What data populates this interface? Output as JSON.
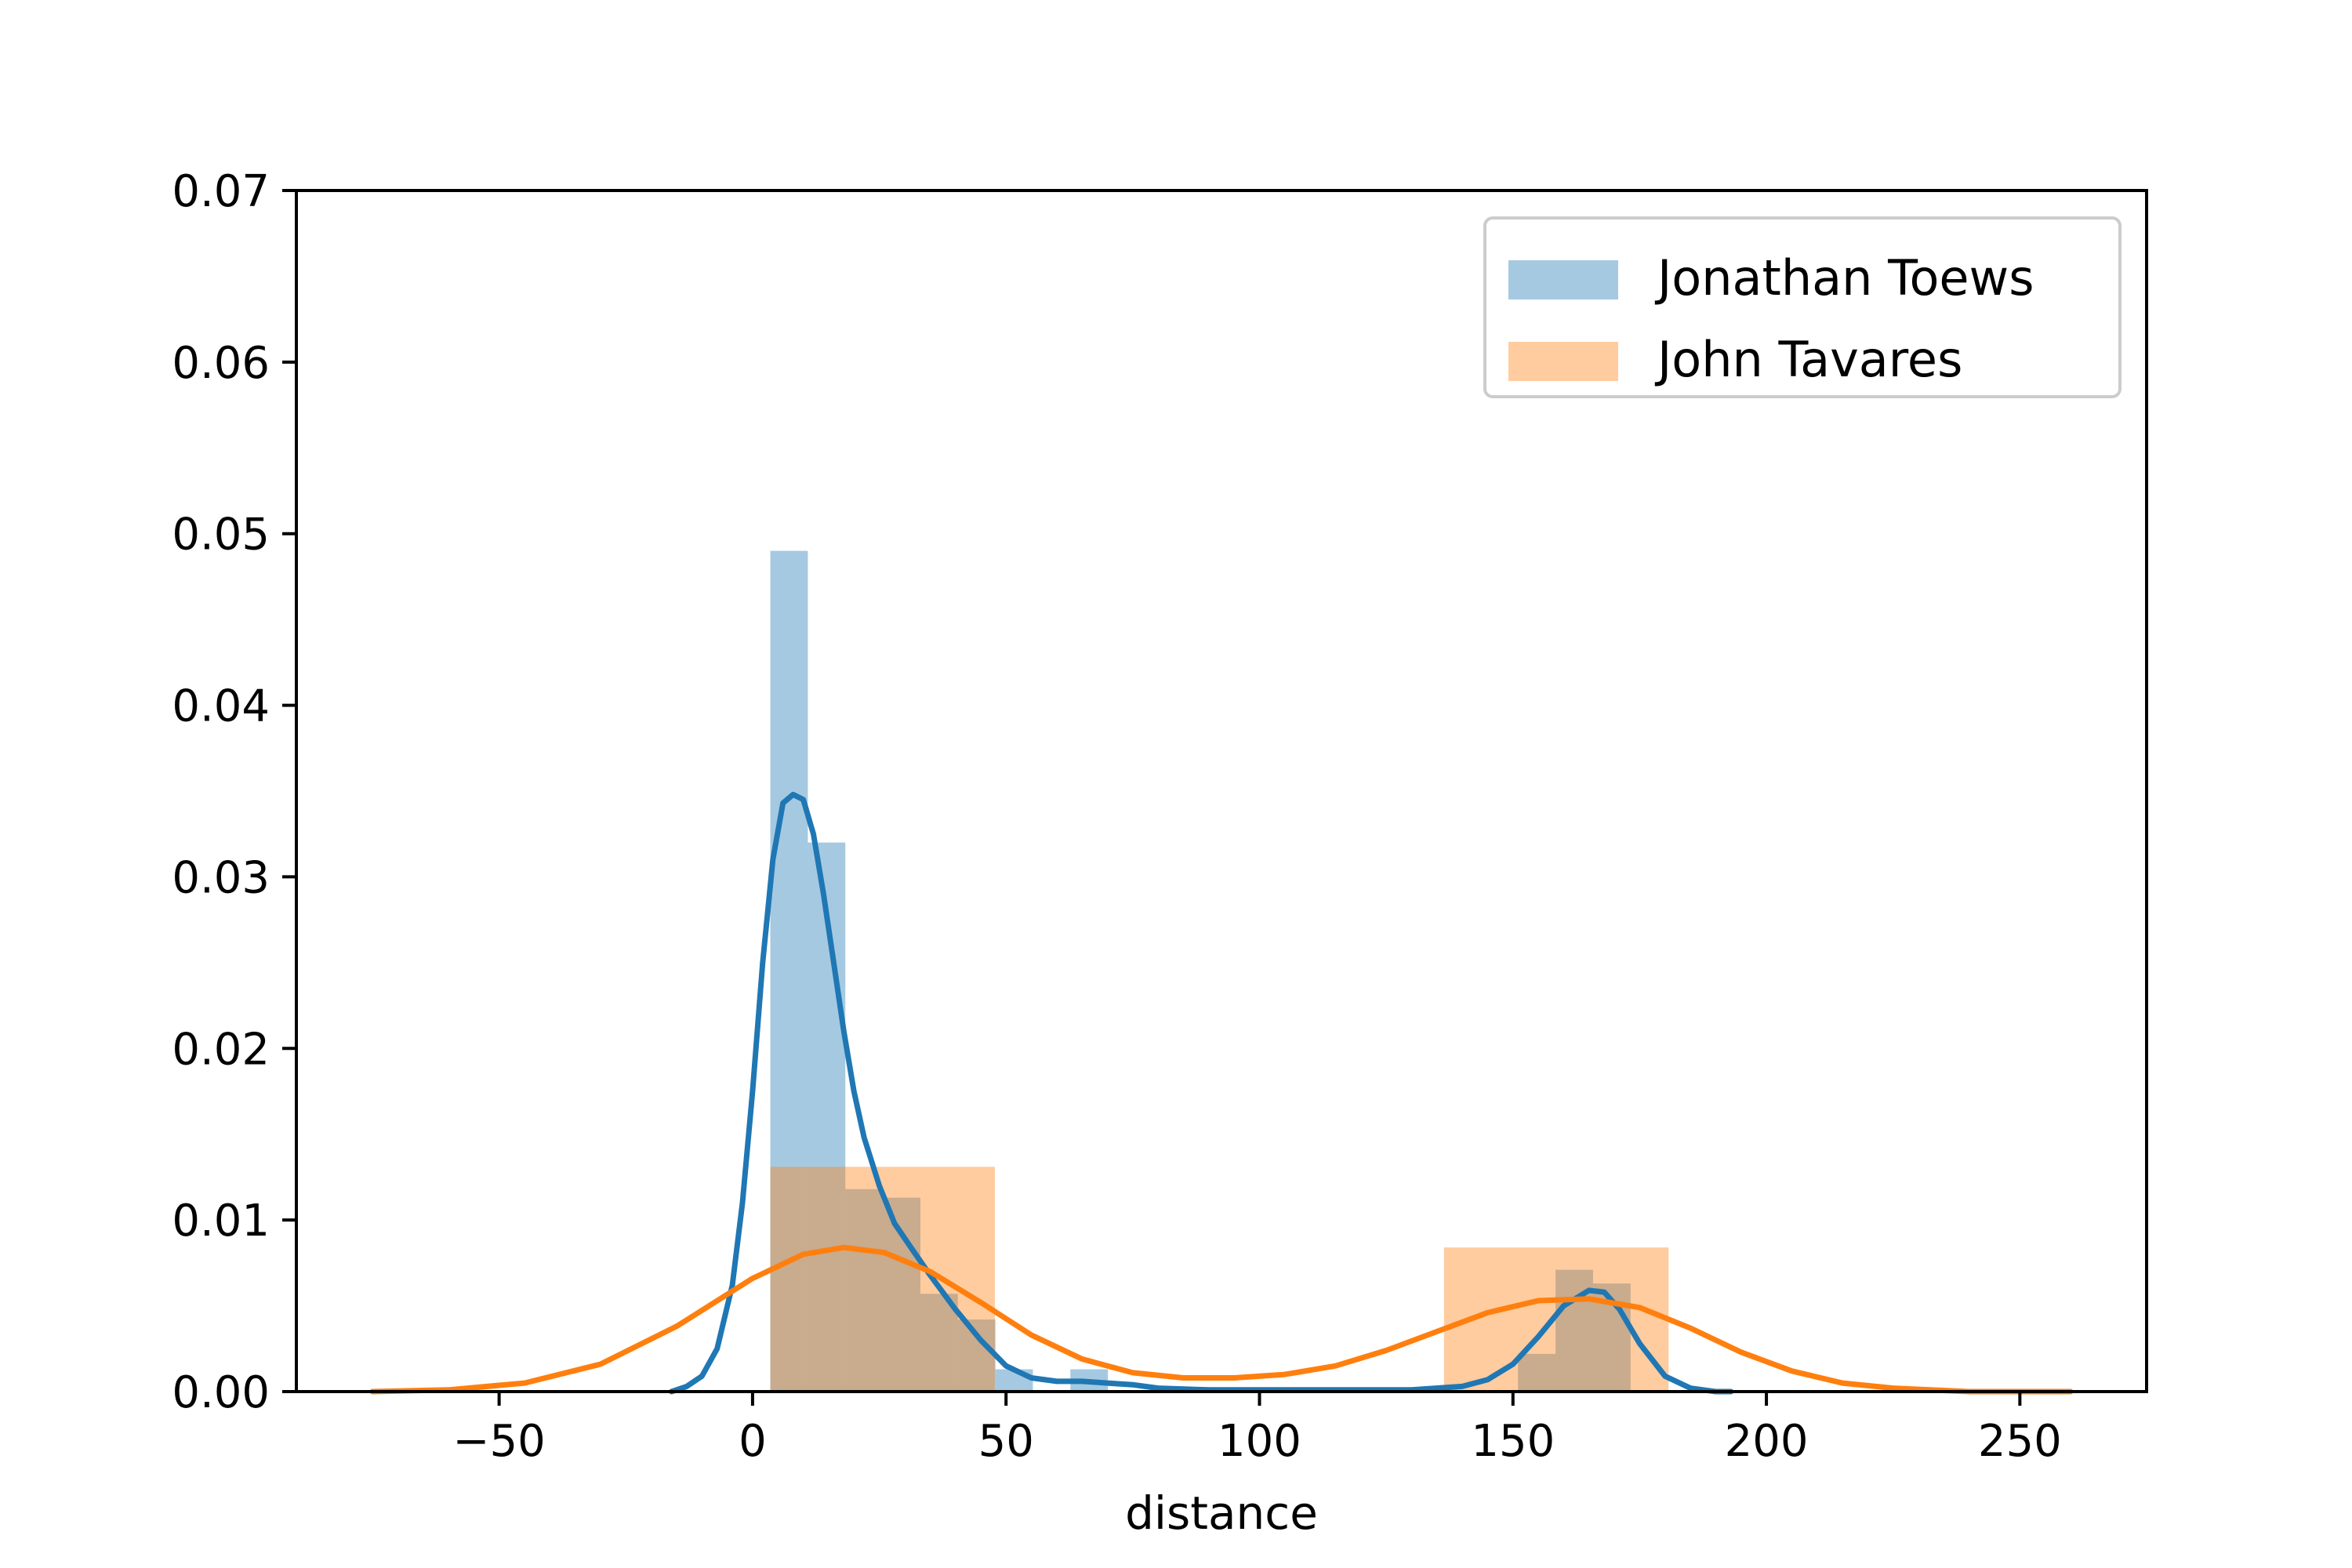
{
  "chart_data": {
    "type": "bar",
    "title": "",
    "xlabel": "distance",
    "ylabel": "",
    "xlim": [
      -90,
      275
    ],
    "ylim": [
      0,
      0.07
    ],
    "x_ticks": [
      -50,
      0,
      50,
      100,
      150,
      200,
      250
    ],
    "x_tick_labels": [
      "−50",
      "0",
      "50",
      "100",
      "150",
      "200",
      "250"
    ],
    "y_ticks": [
      0,
      0.01,
      0.02,
      0.03,
      0.04,
      0.05,
      0.06,
      0.07
    ],
    "y_tick_labels": [
      "0.00",
      "0.01",
      "0.02",
      "0.03",
      "0.04",
      "0.05",
      "0.06",
      "0.07"
    ],
    "grid": false,
    "legend_position": "top-right",
    "series": [
      {
        "name": "Jonathan Toews",
        "color": "#1f77b4",
        "hist": [
          {
            "x0": 3.5,
            "x1": 10.9,
            "height": 0.049
          },
          {
            "x0": 10.9,
            "x1": 18.3,
            "height": 0.032
          },
          {
            "x0": 18.3,
            "x1": 25.7,
            "height": 0.0118
          },
          {
            "x0": 25.7,
            "x1": 33.1,
            "height": 0.0113
          },
          {
            "x0": 33.1,
            "x1": 40.5,
            "height": 0.0057
          },
          {
            "x0": 40.5,
            "x1": 47.9,
            "height": 0.0042
          },
          {
            "x0": 47.9,
            "x1": 55.3,
            "height": 0.0013
          },
          {
            "x0": 55.3,
            "x1": 62.7,
            "height": 0.0
          },
          {
            "x0": 62.7,
            "x1": 70.1,
            "height": 0.0013
          },
          {
            "x0": 70.1,
            "x1": 77.5,
            "height": 0.0
          },
          {
            "x0": 151.0,
            "x1": 158.4,
            "height": 0.0022
          },
          {
            "x0": 158.4,
            "x1": 165.8,
            "height": 0.0071
          },
          {
            "x0": 165.8,
            "x1": 173.2,
            "height": 0.0063
          },
          {
            "x0": 173.2,
            "x1": 175.0,
            "height": 0.0
          }
        ],
        "kde": {
          "x": [
            -16,
            -13,
            -10,
            -7,
            -4,
            -2,
            0,
            2,
            4,
            6,
            8,
            10,
            12,
            14,
            16,
            18,
            20,
            22,
            25,
            28,
            31,
            35,
            40,
            45,
            50,
            55,
            60,
            65,
            70,
            75,
            80,
            90,
            100,
            110,
            120,
            130,
            140,
            145,
            150,
            155,
            160,
            165,
            168,
            171,
            175,
            180,
            185,
            190,
            193
          ],
          "y": [
            0,
            0.0003,
            0.0009,
            0.0025,
            0.0062,
            0.011,
            0.0175,
            0.025,
            0.031,
            0.0343,
            0.0348,
            0.0345,
            0.0325,
            0.029,
            0.025,
            0.021,
            0.0175,
            0.0148,
            0.012,
            0.0098,
            0.0085,
            0.0068,
            0.0048,
            0.003,
            0.0015,
            0.0008,
            0.0006,
            0.0006,
            0.0005,
            0.0004,
            0.0002,
            0.0001,
            0.0001,
            0.0001,
            0.0001,
            0.0001,
            0.0003,
            0.0007,
            0.0016,
            0.0032,
            0.005,
            0.0059,
            0.0058,
            0.0048,
            0.0028,
            0.0009,
            0.0002,
            0.0,
            0.0
          ]
        }
      },
      {
        "name": "John Tavares",
        "color": "#ff7f0e",
        "hist": [
          {
            "x0": 3.5,
            "x1": 47.8,
            "height": 0.0131
          },
          {
            "x0": 47.8,
            "x1": 92.1,
            "height": 0.0
          },
          {
            "x0": 92.1,
            "x1": 136.4,
            "height": 0.0
          },
          {
            "x0": 136.4,
            "x1": 180.7,
            "height": 0.0084
          }
        ],
        "kde": {
          "x": [
            -75,
            -60,
            -45,
            -30,
            -15,
            0,
            10,
            18,
            26,
            35,
            45,
            55,
            65,
            75,
            85,
            95,
            105,
            115,
            125,
            135,
            145,
            155,
            165,
            175,
            185,
            195,
            205,
            215,
            225,
            240,
            260
          ],
          "y": [
            0.0,
            0.0001,
            0.0005,
            0.0016,
            0.0038,
            0.0066,
            0.008,
            0.0084,
            0.0081,
            0.007,
            0.0052,
            0.0033,
            0.0019,
            0.0011,
            0.0008,
            0.0008,
            0.001,
            0.0015,
            0.0024,
            0.0035,
            0.0046,
            0.0053,
            0.0054,
            0.0049,
            0.0037,
            0.0023,
            0.0012,
            0.0005,
            0.0002,
            0.0,
            0.0
          ]
        }
      }
    ]
  }
}
